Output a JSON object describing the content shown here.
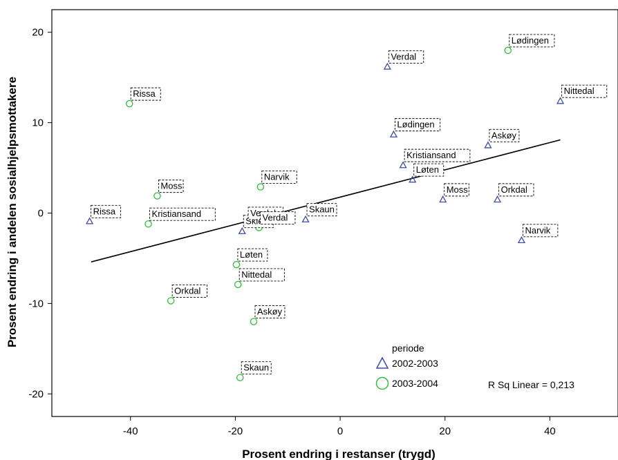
{
  "chart_data": {
    "type": "scatter",
    "xlabel": "Prosent endring i restanser (trygd)",
    "ylabel": "Prosent endring i andelen sosialhjelpsmottakere",
    "xlim": [
      -55,
      53
    ],
    "ylim": [
      -22.5,
      22.5
    ],
    "xticks": [
      -40,
      -20,
      0,
      20,
      40
    ],
    "yticks": [
      -20,
      -10,
      0,
      10,
      20
    ],
    "grid": false,
    "legend": {
      "title": "periode",
      "placement": "bottom-right",
      "entries": [
        {
          "label": "2002-2003",
          "marker": "triangle",
          "color": "#3b4ba8"
        },
        {
          "label": "2003-2004",
          "marker": "circle",
          "color": "#2fbf3c"
        }
      ]
    },
    "annotation": "R Sq Linear = 0,213",
    "fit_line": {
      "x": [
        -47.5,
        42
      ],
      "y": [
        -5.4,
        8.1
      ],
      "color": "#000000"
    },
    "series": [
      {
        "name": "2002-2003",
        "marker": "triangle",
        "color": "#3b4ba8",
        "points": [
          {
            "label": "Verdal",
            "x": 9.0,
            "y": 16.2
          },
          {
            "label": "Nittedal",
            "x": 42.0,
            "y": 12.4
          },
          {
            "label": "Lødingen",
            "x": 10.2,
            "y": 8.7
          },
          {
            "label": "Askøy",
            "x": 28.2,
            "y": 7.5
          },
          {
            "label": "Kristiansand",
            "x": 12.0,
            "y": 5.3
          },
          {
            "label": "Løten",
            "x": 13.8,
            "y": 3.7
          },
          {
            "label": "Moss",
            "x": 19.6,
            "y": 1.5
          },
          {
            "label": "Orkdal",
            "x": 30.0,
            "y": 1.5
          },
          {
            "label": "Rissa",
            "x": -47.8,
            "y": -0.9
          },
          {
            "label": "Skaun",
            "x": -6.6,
            "y": -0.7
          },
          {
            "label": "Skien",
            "x": -18.7,
            "y": -2.0
          },
          {
            "label": "Narvik",
            "x": 34.6,
            "y": -3.0
          }
        ]
      },
      {
        "name": "2003-2004",
        "marker": "circle",
        "color": "#2fbf3c",
        "points": [
          {
            "label": "Lødingen",
            "x": 32.0,
            "y": 18.0
          },
          {
            "label": "Rissa",
            "x": -40.2,
            "y": 12.1
          },
          {
            "label": "Narvik",
            "x": -15.2,
            "y": 2.9
          },
          {
            "label": "Moss",
            "x": -34.9,
            "y": 1.9
          },
          {
            "label": "Kristiansand",
            "x": -36.6,
            "y": -1.2
          },
          {
            "label": "Verdal",
            "x": -17.8,
            "y": -1.1
          },
          {
            "label": "Verdal",
            "x": -15.5,
            "y": -1.6
          },
          {
            "label": "Løten",
            "x": -19.8,
            "y": -5.7
          },
          {
            "label": "Nittedal",
            "x": -19.5,
            "y": -7.9
          },
          {
            "label": "Orkdal",
            "x": -32.3,
            "y": -9.7
          },
          {
            "label": "Askøy",
            "x": -16.5,
            "y": -12.0
          },
          {
            "label": "Skaun",
            "x": -19.1,
            "y": -18.2
          }
        ]
      }
    ]
  }
}
